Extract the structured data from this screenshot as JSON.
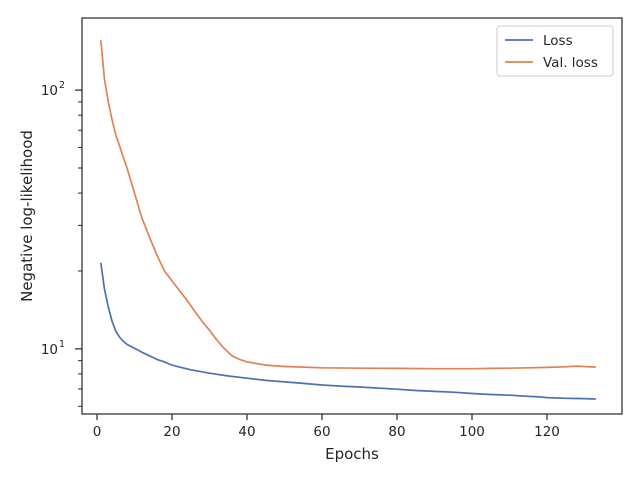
{
  "chart_data": {
    "type": "line",
    "xlabel": "Epochs",
    "ylabel": "Negative log-likelihood",
    "xlim": [
      -4,
      140
    ],
    "ylim": [
      5.6,
      190
    ],
    "yscale": "log",
    "x_ticks": [
      0,
      20,
      40,
      60,
      80,
      100,
      120
    ],
    "y_major_ticks": [
      10,
      100
    ],
    "y_major_labels": [
      {
        "base": "10",
        "exp": "1"
      },
      {
        "base": "10",
        "exp": "2"
      }
    ],
    "y_minor_ticks": [
      6,
      7,
      8,
      9,
      20,
      30,
      40,
      50,
      60,
      70,
      80,
      90
    ],
    "legend_position": "top-right",
    "series": [
      {
        "name": "Loss",
        "color": "#4c72b0",
        "points": [
          [
            1,
            21.5
          ],
          [
            2,
            17
          ],
          [
            3,
            14.5
          ],
          [
            4,
            12.8
          ],
          [
            5,
            11.7
          ],
          [
            6,
            11.1
          ],
          [
            7,
            10.7
          ],
          [
            8,
            10.4
          ],
          [
            10,
            10.05
          ],
          [
            12,
            9.7
          ],
          [
            14,
            9.4
          ],
          [
            16,
            9.1
          ],
          [
            18,
            8.9
          ],
          [
            20,
            8.65
          ],
          [
            22,
            8.5
          ],
          [
            25,
            8.3
          ],
          [
            28,
            8.15
          ],
          [
            30,
            8.05
          ],
          [
            35,
            7.85
          ],
          [
            40,
            7.7
          ],
          [
            45,
            7.55
          ],
          [
            50,
            7.45
          ],
          [
            55,
            7.35
          ],
          [
            60,
            7.25
          ],
          [
            65,
            7.18
          ],
          [
            70,
            7.12
          ],
          [
            75,
            7.05
          ],
          [
            80,
            6.98
          ],
          [
            85,
            6.9
          ],
          [
            90,
            6.85
          ],
          [
            95,
            6.8
          ],
          [
            100,
            6.72
          ],
          [
            105,
            6.66
          ],
          [
            110,
            6.62
          ],
          [
            115,
            6.55
          ],
          [
            118,
            6.52
          ],
          [
            120,
            6.48
          ],
          [
            125,
            6.44
          ],
          [
            128,
            6.43
          ],
          [
            130,
            6.42
          ],
          [
            133,
            6.4
          ]
        ]
      },
      {
        "name": "Val. loss",
        "color": "#dd8452",
        "points": [
          [
            1,
            156
          ],
          [
            2,
            110
          ],
          [
            3,
            90
          ],
          [
            4,
            77
          ],
          [
            5,
            67
          ],
          [
            6,
            61
          ],
          [
            7,
            55
          ],
          [
            8,
            50
          ],
          [
            10,
            40
          ],
          [
            12,
            32
          ],
          [
            14,
            27
          ],
          [
            16,
            23
          ],
          [
            18,
            20
          ],
          [
            20,
            18.3
          ],
          [
            22,
            16.8
          ],
          [
            24,
            15.4
          ],
          [
            26,
            14
          ],
          [
            28,
            12.8
          ],
          [
            30,
            11.8
          ],
          [
            32,
            10.8
          ],
          [
            34,
            10
          ],
          [
            36,
            9.4
          ],
          [
            38,
            9.1
          ],
          [
            40,
            8.9
          ],
          [
            42,
            8.8
          ],
          [
            45,
            8.65
          ],
          [
            50,
            8.55
          ],
          [
            55,
            8.5
          ],
          [
            60,
            8.45
          ],
          [
            70,
            8.42
          ],
          [
            80,
            8.4
          ],
          [
            90,
            8.38
          ],
          [
            100,
            8.38
          ],
          [
            105,
            8.4
          ],
          [
            110,
            8.42
          ],
          [
            115,
            8.45
          ],
          [
            120,
            8.48
          ],
          [
            125,
            8.52
          ],
          [
            128,
            8.58
          ],
          [
            133,
            8.5
          ]
        ]
      }
    ]
  }
}
